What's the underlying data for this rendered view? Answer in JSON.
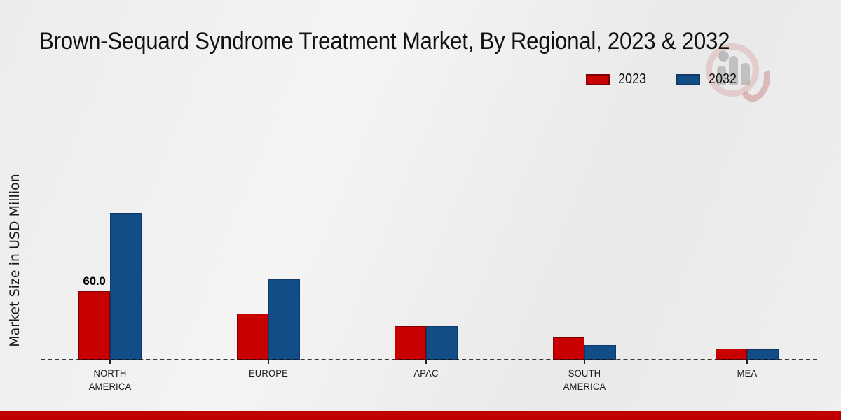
{
  "page": {
    "title": "Brown-Sequard Syndrome Treatment Market, By Regional, 2023 & 2032",
    "footer_color": "#c00000"
  },
  "chart_data": {
    "type": "bar",
    "title": "Brown-Sequard Syndrome Treatment Market, By Regional, 2023 & 2032",
    "xlabel": "",
    "ylabel": "Market Size in USD Million",
    "unit": "USD Million",
    "categories": [
      "NORTH AMERICA",
      "EUROPE",
      "APAC",
      "SOUTH AMERICA",
      "MEA"
    ],
    "series": [
      {
        "name": "2023",
        "color": "#c90000",
        "border_color": "#7f0000",
        "values": [
          60.0,
          40.0,
          29.0,
          19.5,
          9.5
        ],
        "bar_labels": [
          "60.0",
          null,
          null,
          null,
          null
        ]
      },
      {
        "name": "2032",
        "color": "#134d87",
        "border_color": "#0d3a66",
        "values": [
          128.0,
          70.0,
          29.0,
          13.0,
          9.0
        ],
        "bar_labels": [
          null,
          null,
          null,
          null,
          null
        ]
      }
    ],
    "legend_position": "top-right",
    "grid": false,
    "baseline_style": "dashed",
    "only_labeled_value": "60.0 (North America, 2023)"
  },
  "watermark": {
    "name": "market-research-logo-watermark"
  }
}
